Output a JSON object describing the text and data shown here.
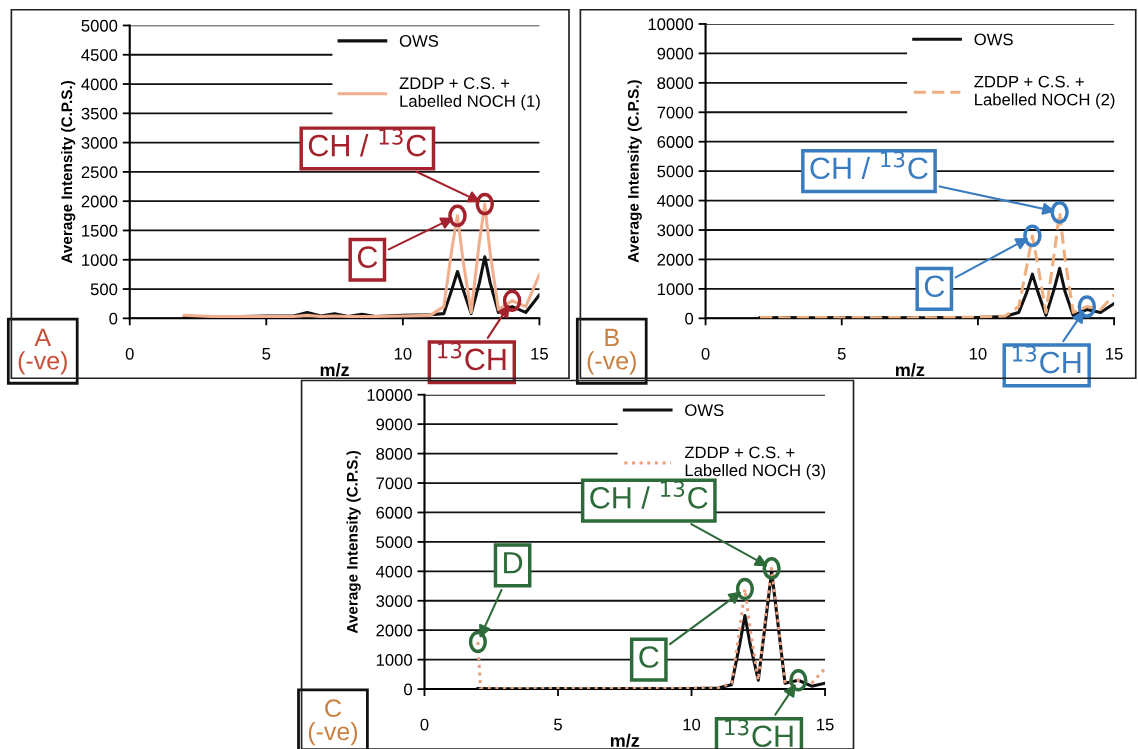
{
  "chart_data": [
    {
      "type": "line",
      "xlabel": "m/z",
      "ylabel": "Average Intensity (C.P.S.)",
      "xlim": [
        0,
        15
      ],
      "xticks": [
        0,
        5,
        10,
        15
      ],
      "ylim": [
        0,
        5000
      ],
      "yticks": [
        0,
        500,
        1000,
        1500,
        2000,
        2500,
        3000,
        3500,
        4000,
        4500,
        5000
      ],
      "grid": "y",
      "legend": "top right",
      "series": [
        {
          "name": "OWS",
          "color": "#111111",
          "line_style": "solid",
          "x": [
            2,
            3,
            4,
            5,
            6,
            6.5,
            7,
            7.5,
            8,
            8.5,
            9,
            10,
            11,
            11.5,
            11.8,
            12,
            12.2,
            12.5,
            12.8,
            13,
            13.2,
            13.5,
            14,
            14.5,
            15
          ],
          "values": [
            30,
            20,
            30,
            40,
            40,
            100,
            40,
            80,
            30,
            70,
            30,
            50,
            60,
            80,
            500,
            800,
            500,
            80,
            600,
            1050,
            600,
            100,
            200,
            100,
            400
          ]
        },
        {
          "name": "ZDDP + C.S. +\nLabelled NOCH (1)",
          "color": "#f0b090",
          "line_style": "solid",
          "x": [
            2,
            3,
            4,
            5,
            6,
            6.5,
            7,
            7.5,
            8,
            8.5,
            9,
            10,
            11,
            11.5,
            11.8,
            12,
            12.2,
            12.5,
            12.8,
            13,
            13.2,
            13.5,
            14,
            14.5,
            15
          ],
          "values": [
            50,
            30,
            30,
            30,
            30,
            50,
            30,
            40,
            30,
            30,
            30,
            40,
            50,
            200,
            1200,
            1750,
            1000,
            100,
            1300,
            1950,
            1100,
            150,
            300,
            200,
            750
          ]
        }
      ],
      "annotations": [
        "A\n(-ve)",
        {
          "text": "CH / $^{13}$C",
          "x": 13,
          "y": 1950
        },
        {
          "text": "C",
          "x": 12,
          "y": 1750
        },
        {
          "text": "$^{13}$CH",
          "x": 14,
          "y": 300
        }
      ]
    },
    {
      "type": "line",
      "xlabel": "m/z",
      "ylabel": "Average Intensity (C.P.S.)",
      "xlim": [
        0,
        15
      ],
      "xticks": [
        0,
        5,
        10,
        15
      ],
      "ylim": [
        0,
        10000
      ],
      "yticks": [
        0,
        1000,
        2000,
        3000,
        4000,
        5000,
        6000,
        7000,
        8000,
        9000,
        10000
      ],
      "grid": "y",
      "legend": "top right",
      "series": [
        {
          "name": "OWS",
          "color": "#111111",
          "line_style": "solid",
          "x": [
            2,
            3,
            4,
            5,
            6,
            6.5,
            7,
            7.5,
            8,
            8.5,
            9,
            10,
            11,
            11.5,
            11.8,
            12,
            12.2,
            12.5,
            12.8,
            13,
            13.2,
            13.5,
            14,
            14.5,
            15
          ],
          "values": [
            20,
            30,
            20,
            30,
            20,
            30,
            20,
            30,
            20,
            30,
            20,
            30,
            60,
            200,
            900,
            1500,
            900,
            100,
            1000,
            1700,
            900,
            100,
            300,
            200,
            500
          ]
        },
        {
          "name": "ZDDP + C.S. +\nLabelled NOCH (2)",
          "color": "#eeb080",
          "line_style": "dashed",
          "x": [
            2,
            3,
            4,
            5,
            6,
            6.5,
            7,
            7.5,
            8,
            8.5,
            9,
            10,
            11,
            11.5,
            11.8,
            12,
            12.2,
            12.5,
            12.8,
            13,
            13.2,
            13.5,
            14,
            14.5,
            15
          ],
          "values": [
            30,
            20,
            30,
            20,
            30,
            20,
            30,
            20,
            30,
            20,
            30,
            40,
            80,
            400,
            1800,
            2800,
            1800,
            200,
            2200,
            3600,
            2000,
            200,
            400,
            300,
            800
          ]
        }
      ],
      "annotations": [
        "B\n(-ve)",
        {
          "text": "CH / $^{13}$C",
          "x": 13,
          "y": 3600
        },
        {
          "text": "C",
          "x": 12,
          "y": 2800
        },
        {
          "text": "$^{13}$CH",
          "x": 14,
          "y": 400
        }
      ]
    },
    {
      "type": "line",
      "xlabel": "m/z",
      "ylabel": "Average Intensity (C.P.S.)",
      "xlim": [
        0,
        15
      ],
      "xticks": [
        0,
        5,
        10,
        15
      ],
      "ylim": [
        0,
        10000
      ],
      "yticks": [
        0,
        1000,
        2000,
        3000,
        4000,
        5000,
        6000,
        7000,
        8000,
        9000,
        10000
      ],
      "grid": "y",
      "legend": "top right",
      "series": [
        {
          "name": "OWS",
          "color": "#111111",
          "line_style": "solid",
          "x": [
            2,
            3,
            4,
            5,
            6,
            6.5,
            7,
            7.5,
            8,
            8.5,
            9,
            10,
            11,
            11.5,
            11.8,
            12,
            12.2,
            12.5,
            12.8,
            13,
            13.2,
            13.5,
            14,
            14.5,
            15
          ],
          "values": [
            20,
            10,
            10,
            20,
            10,
            20,
            10,
            20,
            10,
            20,
            10,
            20,
            40,
            150,
            1500,
            2500,
            1500,
            300,
            2500,
            4000,
            2500,
            200,
            300,
            100,
            200
          ]
        },
        {
          "name": "ZDDP + C.S. +\nLabelled NOCH (3)",
          "color": "#e8a080",
          "line_style": "dotted",
          "x": [
            2,
            2.1,
            3,
            4,
            5,
            6,
            6.5,
            7,
            7.5,
            8,
            8.5,
            9,
            10,
            11,
            11.5,
            11.8,
            12,
            12.2,
            12.5,
            12.8,
            13,
            13.2,
            13.5,
            14,
            14.5,
            15
          ],
          "values": [
            1600,
            30,
            20,
            20,
            20,
            20,
            20,
            20,
            20,
            20,
            20,
            20,
            30,
            50,
            200,
            2000,
            3400,
            2000,
            300,
            2700,
            4100,
            2600,
            200,
            300,
            200,
            700
          ]
        }
      ],
      "annotations": [
        "C\n(-ve)",
        {
          "text": "D",
          "x": 2,
          "y": 1600
        },
        {
          "text": "CH / $^{13}$C",
          "x": 13,
          "y": 4100
        },
        {
          "text": "C",
          "x": 12,
          "y": 3400
        },
        {
          "text": "$^{13}$CH",
          "x": 14,
          "y": 300
        }
      ]
    }
  ]
}
